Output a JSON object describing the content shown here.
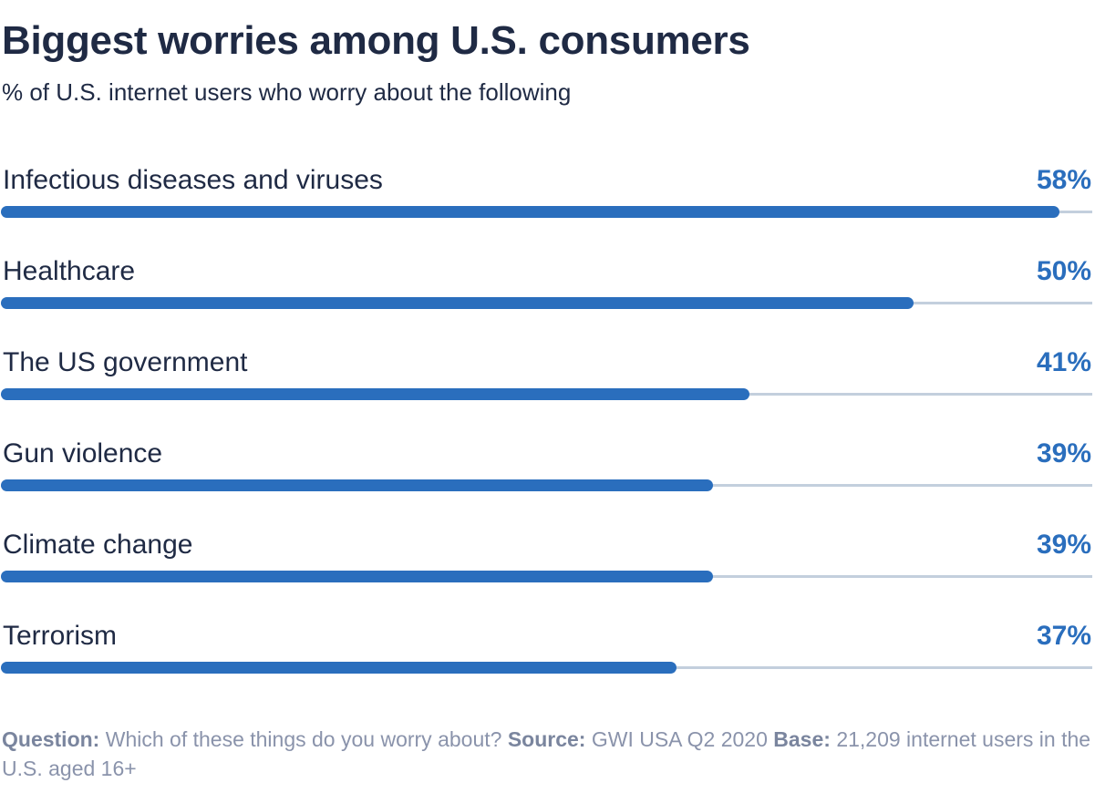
{
  "title": "Biggest worries among U.S. consumers",
  "subtitle": "% of U.S. internet users who worry about the following",
  "colors": {
    "bar": "#2a6ebd",
    "track": "#c3cfdd",
    "text": "#1f2a44",
    "footer": "#8a93ab"
  },
  "chart_data": {
    "type": "bar",
    "orientation": "horizontal",
    "title": "Biggest worries among U.S. consumers",
    "subtitle": "% of U.S. internet users who worry about the following",
    "categories": [
      "Infectious diseases and viruses",
      "Healthcare",
      "The US government",
      "Gun violence",
      "Climate change",
      "Terrorism"
    ],
    "values": [
      58,
      50,
      41,
      39,
      39,
      37
    ],
    "value_labels": [
      "58%",
      "50%",
      "41%",
      "39%",
      "39%",
      "37%"
    ],
    "xlim": [
      0,
      60
    ],
    "grid": false,
    "legend": "none"
  },
  "footer": {
    "question_label": "Question:",
    "question_text": "Which of these things do you worry about?",
    "source_label": "Source:",
    "source_text": "GWI USA Q2 2020",
    "base_label": "Base:",
    "base_text": "21,209 internet users in the U.S. aged 16+"
  }
}
